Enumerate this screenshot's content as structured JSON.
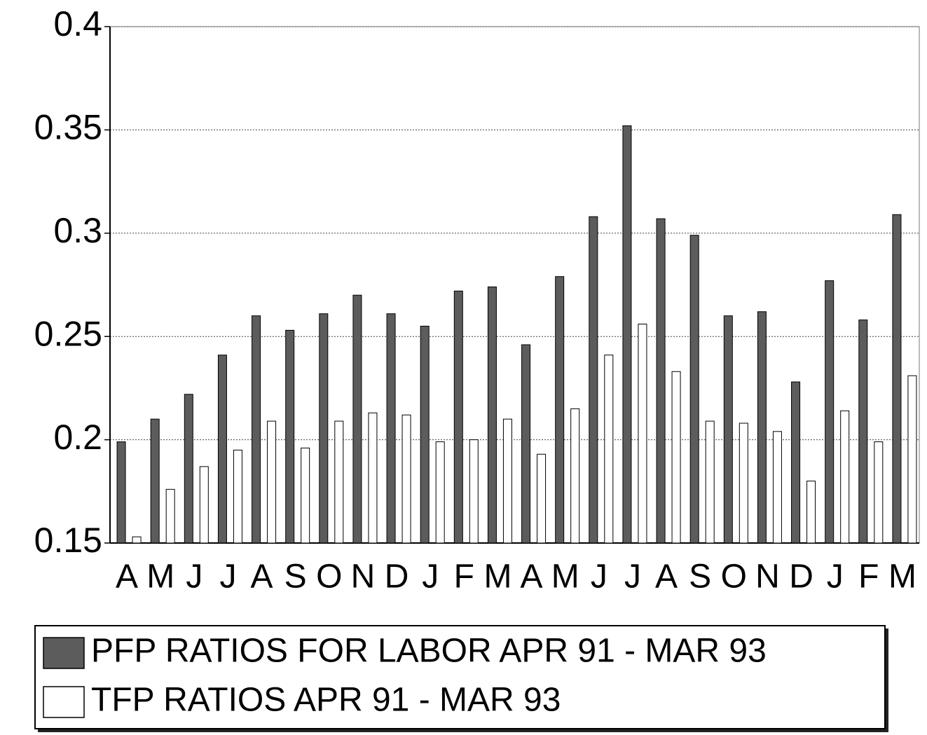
{
  "chart_data": {
    "type": "bar",
    "categories": [
      "A",
      "M",
      "J",
      "J",
      "A",
      "S",
      "O",
      "N",
      "D",
      "J",
      "F",
      "M",
      "A",
      "M",
      "J",
      "J",
      "A",
      "S",
      "O",
      "N",
      "D",
      "J",
      "F",
      "M"
    ],
    "series": [
      {
        "name": "PFP RATIOS FOR LABOR APR 91 - MAR 93",
        "color": "#5c5c5c",
        "values": [
          0.199,
          0.21,
          0.222,
          0.241,
          0.26,
          0.253,
          0.261,
          0.27,
          0.261,
          0.255,
          0.272,
          0.274,
          0.246,
          0.279,
          0.308,
          0.352,
          0.307,
          0.299,
          0.26,
          0.262,
          0.228,
          0.277,
          0.258,
          0.309
        ]
      },
      {
        "name": "TFP RATIOS APR 91 - MAR 93",
        "color": "#ffffff",
        "values": [
          0.153,
          0.176,
          0.187,
          0.195,
          0.209,
          0.196,
          0.209,
          0.213,
          0.212,
          0.199,
          0.2,
          0.21,
          0.193,
          0.215,
          0.241,
          0.256,
          0.233,
          0.209,
          0.208,
          0.204,
          0.18,
          0.214,
          0.199,
          0.231
        ]
      }
    ],
    "ylim": [
      0.15,
      0.4
    ],
    "yticks": [
      0.15,
      0.2,
      0.25,
      0.3,
      0.35,
      0.4
    ],
    "grid": true
  }
}
